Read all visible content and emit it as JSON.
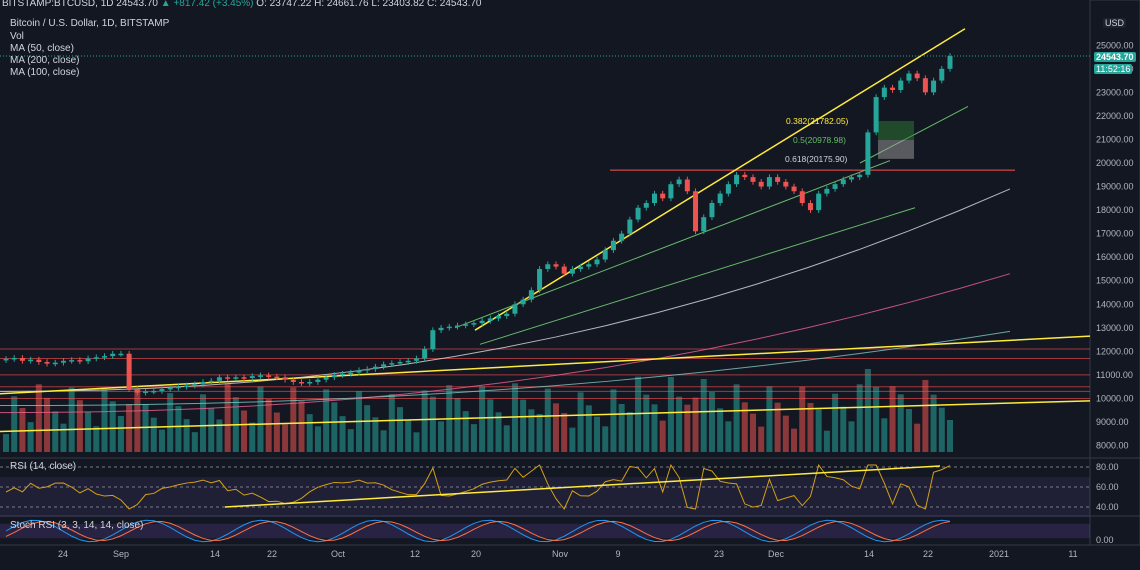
{
  "header": {
    "symbol": "BITSTAMP:BTCUSD, 1D",
    "last": "24543.70",
    "change": "▲ +817.42 (+3.45%)",
    "ohlc": "O: 23747.22  H: 24661.76  L: 23403.82  C: 24543.70"
  },
  "legend": {
    "title": "Bitcoin / U.S. Dollar, 1D, BITSTAMP",
    "items": [
      "Vol",
      "MA (50, close)",
      "MA (200, close)",
      "MA (100, close)"
    ]
  },
  "price_axis": {
    "currency": "USD",
    "ticks": [
      "25000.00",
      "24000.00",
      "23000.00",
      "22000.00",
      "21000.00",
      "20000.00",
      "19000.00",
      "18000.00",
      "17000.00",
      "16000.00",
      "15000.00",
      "14000.00",
      "13000.00",
      "12000.00",
      "11000.00",
      "10000.00",
      "9000.00",
      "8000.00"
    ],
    "last_price": "24543.70",
    "countdown": "11:52:16"
  },
  "fib_labels": [
    "0.382(21782.05)",
    "0.5(20978.98)",
    "0.618(20175.90)"
  ],
  "rsi": {
    "title": "RSI (14, close)",
    "ticks": [
      "80.00",
      "60.00",
      "40.00"
    ]
  },
  "stoch": {
    "title": "Stoch RSI (3, 3, 14, 14, close)",
    "ticks": [
      "0.00"
    ]
  },
  "time_axis": {
    "labels": [
      "24",
      "Sep",
      "14",
      "22",
      "Oct",
      "12",
      "20",
      "Nov",
      "9",
      "23",
      "Dec",
      "14",
      "22",
      "2021",
      "11"
    ]
  },
  "colors": {
    "up": "#26a69a",
    "down": "#ef5350",
    "background": "#131722",
    "trend": "#ffeb3b",
    "channel": "#66bb6a",
    "support": "#ff5252"
  },
  "chart_data": {
    "type": "candlestick",
    "ylim": [
      7600,
      26200
    ],
    "series_close": [
      11680,
      11720,
      11600,
      11650,
      11550,
      11480,
      11520,
      11600,
      11630,
      11580,
      11700,
      11750,
      11800,
      11900,
      11900,
      10400,
      10250,
      10300,
      10320,
      10400,
      10450,
      10500,
      10550,
      10600,
      10700,
      10750,
      10900,
      10850,
      10900,
      10870,
      10950,
      10980,
      10930,
      10900,
      10800,
      10700,
      10650,
      10700,
      10800,
      10900,
      11000,
      11050,
      11100,
      11200,
      11250,
      11350,
      11450,
      11500,
      11550,
      11600,
      11700,
      12100,
      12900,
      13000,
      13050,
      13100,
      13150,
      13200,
      13300,
      13400,
      13500,
      13600,
      14000,
      14200,
      14600,
      15500,
      15700,
      15600,
      15300,
      15500,
      15600,
      15700,
      15900,
      16300,
      16700,
      17000,
      17600,
      18100,
      18300,
      18700,
      18500,
      19100,
      19300,
      18800,
      17100,
      17700,
      18300,
      18700,
      19100,
      19500,
      19400,
      19200,
      19000,
      19400,
      19200,
      19000,
      18800,
      18300,
      18000,
      18700,
      18900,
      19100,
      19300,
      19400,
      19500,
      21300,
      22800,
      23200,
      23100,
      23500,
      23800,
      23600,
      23000,
      23500,
      24000,
      24543
    ],
    "ma_series": [
      {
        "name": "MA (50, close)",
        "start": [
          0,
          9400
        ],
        "end": [
          1010,
          15300
        ]
      },
      {
        "name": "MA (200, close)",
        "start": [
          0,
          10300
        ],
        "end": [
          1010,
          18900
        ]
      },
      {
        "name": "MA (100, close)",
        "start": [
          0,
          9700
        ],
        "end": [
          1010,
          12850
        ]
      }
    ],
    "volume_note": "Vol",
    "fib_levels": [
      {
        "ratio": 0.382,
        "price": 21782.05
      },
      {
        "ratio": 0.5,
        "price": 20978.98
      },
      {
        "ratio": 0.618,
        "price": 20175.9
      }
    ],
    "horizontal_levels": [
      19700,
      12100,
      11700,
      11000,
      10500,
      10300,
      10000
    ],
    "rsi_levels": [
      80,
      60,
      40
    ]
  }
}
